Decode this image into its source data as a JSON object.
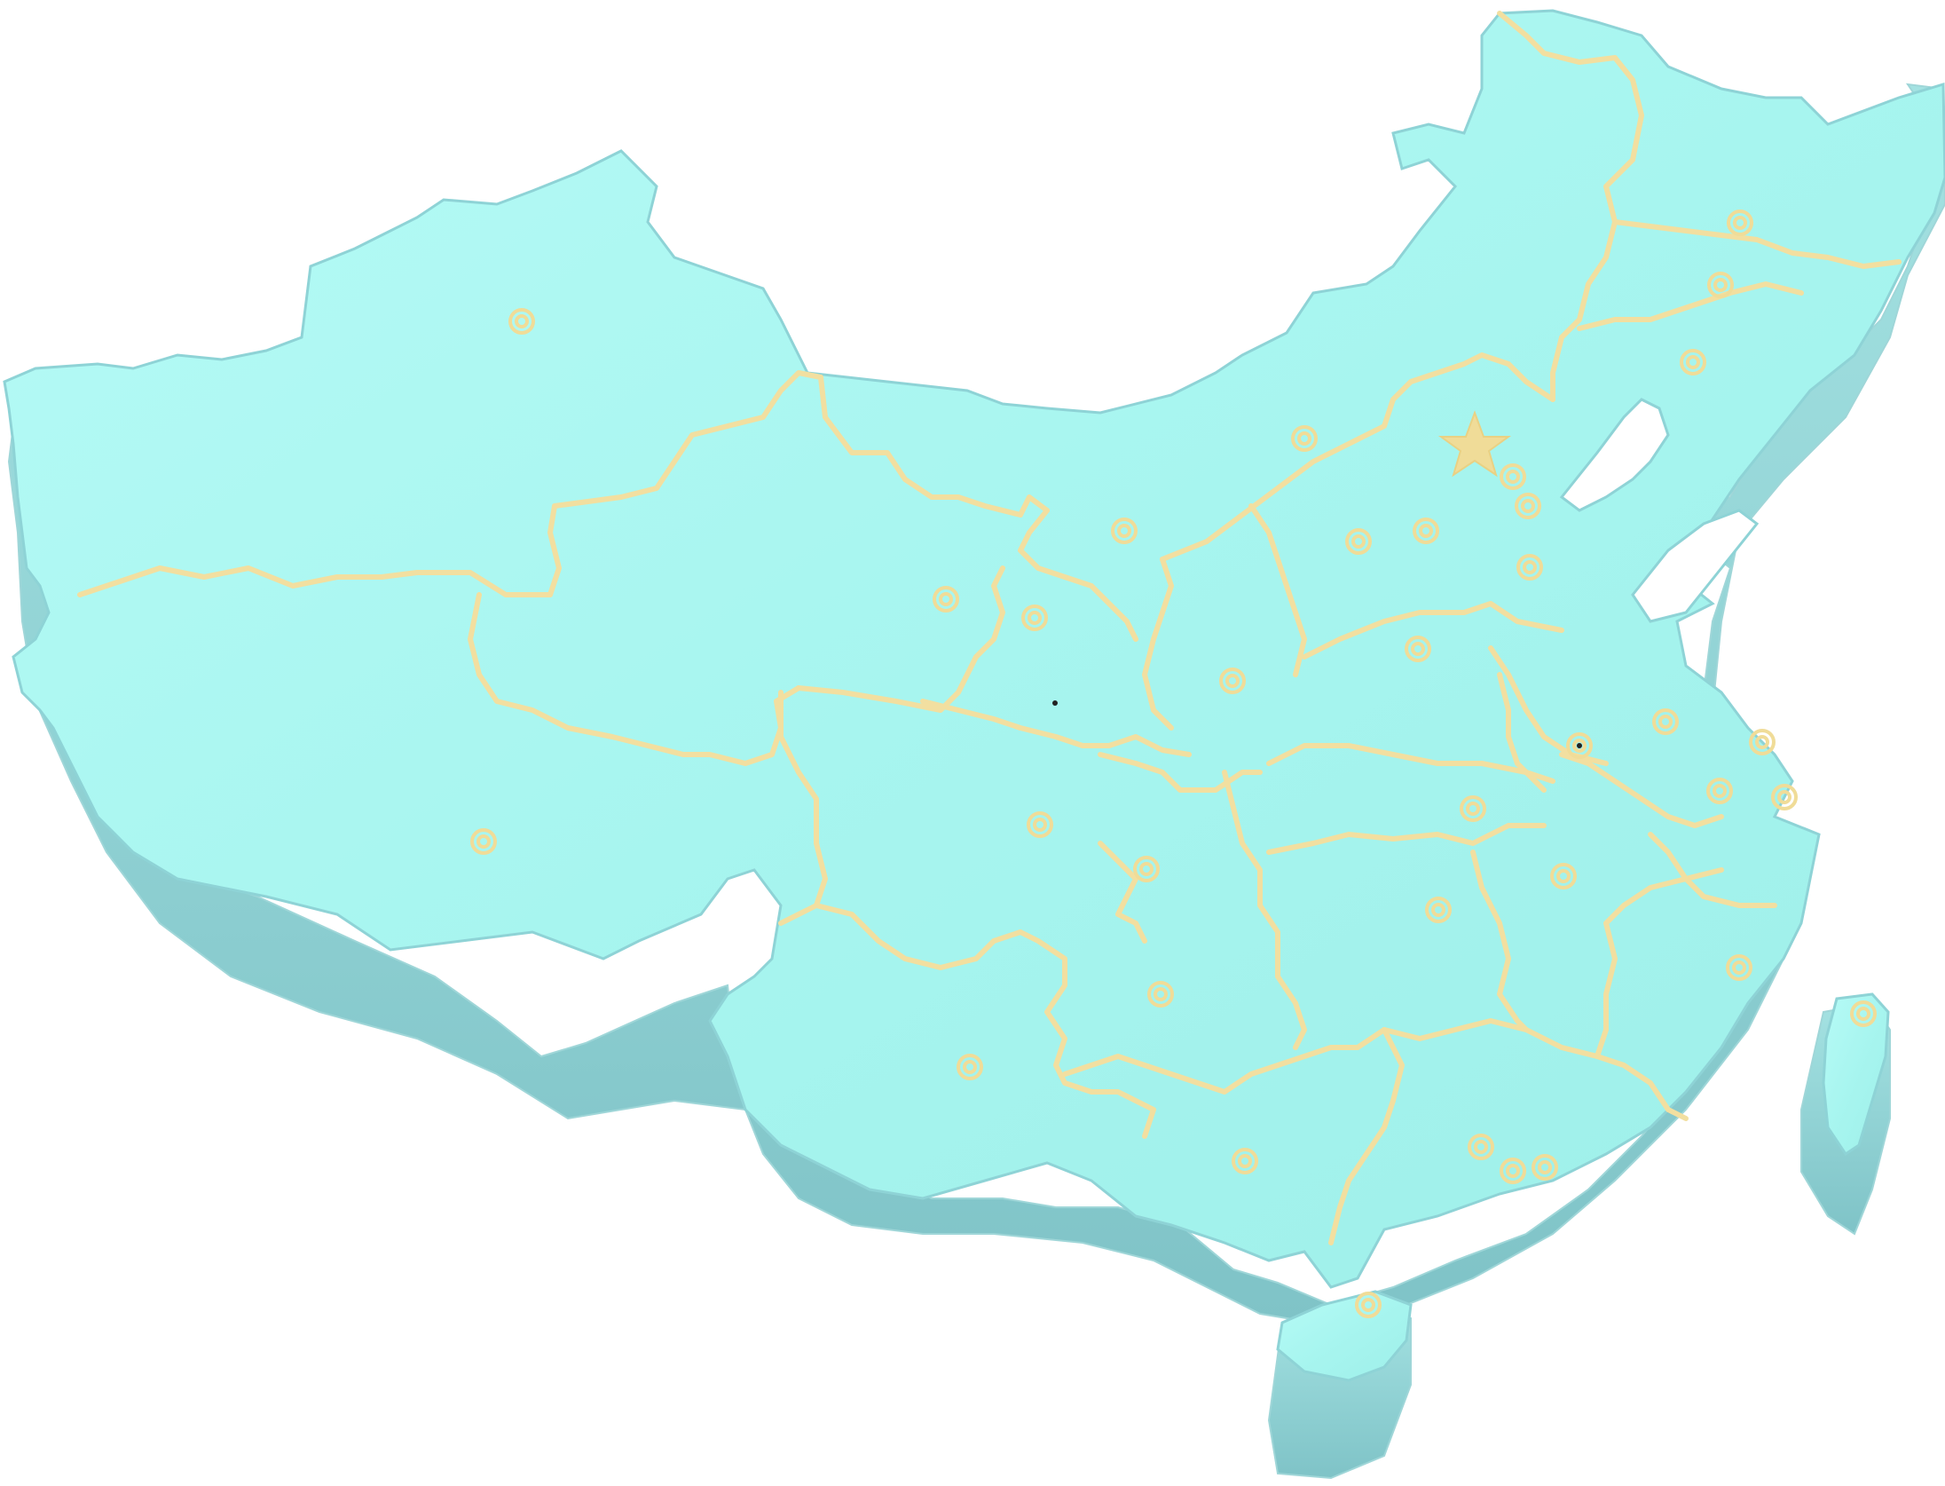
{
  "map": {
    "style": "3d-extruded",
    "colors": {
      "land_top": "#a9f7f1",
      "land_top_light": "#c2fbf6",
      "land_side": "#8fd3d3",
      "land_side_dark": "#6fb9be",
      "boundary": "#f2dfa0",
      "marker": "#f0dc98",
      "background": "#ffffff"
    },
    "markers": [
      {
        "name": "capital",
        "kind": "star"
      },
      {
        "name": "city",
        "kind": "circle"
      }
    ],
    "labels": []
  }
}
